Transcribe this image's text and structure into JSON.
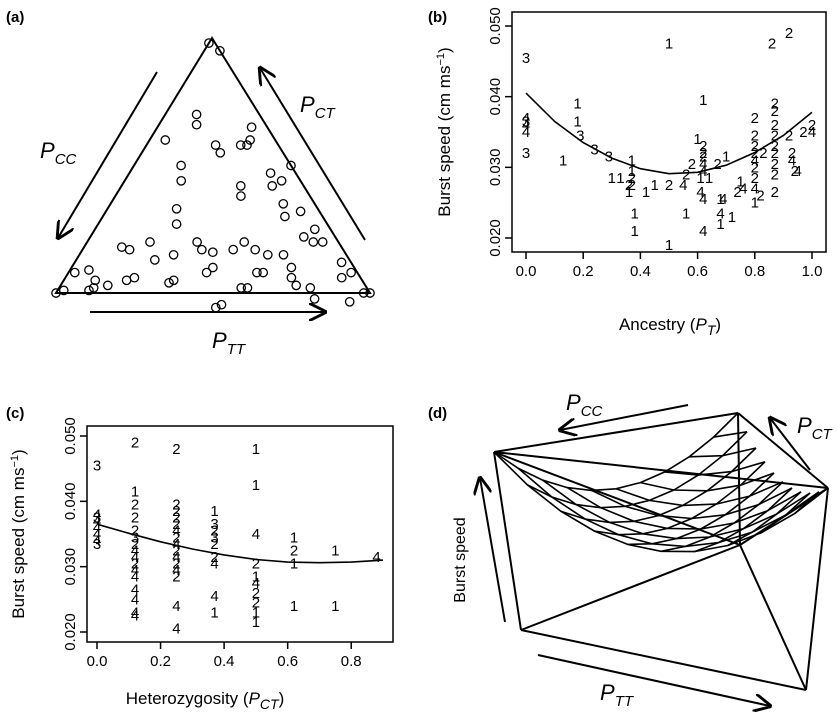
{
  "panels": {
    "a": {
      "label": "(a)",
      "edge_labels": {
        "cc_main": "P",
        "cc_sub": "CC",
        "ct_main": "P",
        "ct_sub": "CT",
        "tt_main": "P",
        "tt_sub": "TT"
      }
    },
    "b": {
      "label": "(b)",
      "xlabel_main": "Ancestry (",
      "xlabel_sym": "P",
      "xlabel_sub": "T",
      "xlabel_end": ")",
      "ylabel_main": "Burst speed (cm ms",
      "ylabel_sup": "−1",
      "ylabel_end": ")",
      "xticks": [
        "0.0",
        "0.2",
        "0.4",
        "0.6",
        "0.8",
        "1.0"
      ],
      "yticks": [
        "0.020",
        "0.030",
        "0.040",
        "0.050"
      ]
    },
    "c": {
      "label": "(c)",
      "xlabel_main": "Heterozygosity (",
      "xlabel_sym": "P",
      "xlabel_sub": "CT",
      "xlabel_end": ")",
      "ylabel_main": "Burst speed (cm ms",
      "ylabel_sup": "−1",
      "ylabel_end": ")",
      "xticks": [
        "0.0",
        "0.2",
        "0.4",
        "0.6",
        "0.8"
      ],
      "yticks": [
        "0.020",
        "0.030",
        "0.040",
        "0.050"
      ]
    },
    "d": {
      "label": "(d)",
      "zlabel": "Burst speed",
      "edge_labels": {
        "cc_main": "P",
        "cc_sub": "CC",
        "ct_main": "P",
        "ct_sub": "CT",
        "tt_main": "P",
        "tt_sub": "TT"
      }
    }
  },
  "chart_data": [
    {
      "panel": "a",
      "type": "scatter",
      "description": "ternary",
      "points": [
        [
          1.0,
          0.0
        ],
        [
          0.98,
          0.02
        ],
        [
          0.05,
          0.0
        ],
        [
          0.0,
          0.02
        ],
        [
          0.5,
          0.0
        ],
        [
          0.02,
          0.97
        ],
        [
          0.0,
          1.0
        ],
        [
          0.88,
          0.06
        ],
        [
          0.93,
          0.1
        ],
        [
          0.75,
          0.22
        ],
        [
          0.8,
          0.18
        ],
        [
          0.82,
          0.2
        ],
        [
          0.85,
          0.03
        ],
        [
          0.9,
          0.02
        ],
        [
          0.75,
          0.05
        ],
        [
          0.62,
          0.3
        ],
        [
          0.6,
          0.32
        ],
        [
          0.45,
          0.45
        ],
        [
          0.44,
          0.48
        ],
        [
          0.35,
          0.6
        ],
        [
          0.34,
          0.62
        ],
        [
          0.22,
          0.72
        ],
        [
          0.2,
          0.75
        ],
        [
          0.11,
          0.87
        ],
        [
          0.1,
          0.89
        ],
        [
          0.02,
          0.9
        ],
        [
          0.06,
          0.85
        ],
        [
          0.15,
          0.82
        ],
        [
          0.1,
          0.85
        ],
        [
          0.15,
          0.68
        ],
        [
          0.12,
          0.7
        ],
        [
          0.2,
          0.6
        ],
        [
          0.25,
          0.62
        ],
        [
          0.3,
          0.55
        ],
        [
          0.35,
          0.45
        ],
        [
          0.38,
          0.45
        ],
        [
          0.42,
          0.42
        ],
        [
          0.48,
          0.35
        ],
        [
          0.5,
          0.3
        ],
        [
          0.55,
          0.28
        ],
        [
          0.6,
          0.25
        ],
        [
          0.55,
          0.1
        ],
        [
          0.58,
          0.12
        ],
        [
          0.62,
          0.06
        ],
        [
          0.68,
          0.1
        ],
        [
          0.7,
          0.05
        ],
        [
          0.72,
          0.08
        ],
        [
          0.3,
          0.12
        ],
        [
          0.32,
          0.1
        ],
        [
          0.38,
          0.2
        ],
        [
          0.4,
          0.22
        ],
        [
          0.45,
          0.08
        ],
        [
          0.5,
          0.06
        ],
        [
          0.48,
          0.1
        ],
        [
          0.3,
          0.05
        ],
        [
          0.32,
          0.08
        ],
        [
          0.22,
          0.2
        ],
        [
          0.25,
          0.2
        ],
        [
          0.15,
          0.35
        ],
        [
          0.18,
          0.38
        ],
        [
          0.1,
          0.2
        ],
        [
          0.12,
          0.22
        ],
        [
          0.05,
          0.35
        ],
        [
          0.22,
          0.45
        ],
        [
          0.25,
          0.48
        ],
        [
          0.58,
          0.4
        ],
        [
          0.6,
          0.38
        ],
        [
          0.5,
          0.55
        ],
        [
          0.52,
          0.52
        ],
        [
          0.7,
          0.2
        ],
        [
          0.72,
          0.22
        ],
        [
          0.65,
          0.2
        ]
      ]
    },
    {
      "panel": "b",
      "type": "scatter",
      "xlim": [
        0,
        1.0
      ],
      "ylim": [
        0.02,
        0.05
      ],
      "points": [
        [
          0.0,
          0.0455,
          "3"
        ],
        [
          0.0,
          0.037,
          "4"
        ],
        [
          0.0,
          0.0365,
          "3"
        ],
        [
          0.0,
          0.036,
          "4"
        ],
        [
          0.0,
          0.035,
          "4"
        ],
        [
          0.0,
          0.032,
          "3"
        ],
        [
          0.13,
          0.031,
          "1"
        ],
        [
          0.18,
          0.039,
          "1"
        ],
        [
          0.18,
          0.0365,
          "1"
        ],
        [
          0.19,
          0.0345,
          "3"
        ],
        [
          0.24,
          0.0325,
          "3"
        ],
        [
          0.29,
          0.0315,
          "3"
        ],
        [
          0.3,
          0.0285,
          "1"
        ],
        [
          0.33,
          0.0285,
          "1"
        ],
        [
          0.36,
          0.0275,
          "2"
        ],
        [
          0.36,
          0.0265,
          "1"
        ],
        [
          0.37,
          0.031,
          "1"
        ],
        [
          0.37,
          0.0295,
          "1"
        ],
        [
          0.37,
          0.0285,
          "2"
        ],
        [
          0.37,
          0.0275,
          "2"
        ],
        [
          0.38,
          0.0235,
          "1"
        ],
        [
          0.38,
          0.021,
          "1"
        ],
        [
          0.42,
          0.0265,
          "1"
        ],
        [
          0.45,
          0.0275,
          "1"
        ],
        [
          0.5,
          0.0275,
          "2"
        ],
        [
          0.5,
          0.019,
          "1"
        ],
        [
          0.5,
          0.0475,
          "1"
        ],
        [
          0.55,
          0.0275,
          "4"
        ],
        [
          0.56,
          0.029,
          "2"
        ],
        [
          0.56,
          0.0235,
          "1"
        ],
        [
          0.58,
          0.0305,
          "2"
        ],
        [
          0.6,
          0.034,
          "1"
        ],
        [
          0.61,
          0.0285,
          "1"
        ],
        [
          0.61,
          0.0265,
          "4"
        ],
        [
          0.62,
          0.033,
          "2"
        ],
        [
          0.62,
          0.032,
          "2"
        ],
        [
          0.62,
          0.0305,
          "4"
        ],
        [
          0.62,
          0.0295,
          "4"
        ],
        [
          0.62,
          0.0255,
          "4"
        ],
        [
          0.62,
          0.021,
          "4"
        ],
        [
          0.62,
          0.0395,
          "1"
        ],
        [
          0.62,
          0.0315,
          "2"
        ],
        [
          0.64,
          0.0285,
          "1"
        ],
        [
          0.67,
          0.0305,
          "2"
        ],
        [
          0.68,
          0.0255,
          "1"
        ],
        [
          0.68,
          0.0235,
          "4"
        ],
        [
          0.68,
          0.022,
          "1"
        ],
        [
          0.69,
          0.0255,
          "4"
        ],
        [
          0.7,
          0.0315,
          "1"
        ],
        [
          0.72,
          0.023,
          "1"
        ],
        [
          0.74,
          0.0265,
          "2"
        ],
        [
          0.75,
          0.028,
          "1"
        ],
        [
          0.76,
          0.027,
          "4"
        ],
        [
          0.8,
          0.037,
          "2"
        ],
        [
          0.8,
          0.0345,
          "2"
        ],
        [
          0.8,
          0.033,
          "2"
        ],
        [
          0.8,
          0.032,
          "2"
        ],
        [
          0.8,
          0.031,
          "4"
        ],
        [
          0.8,
          0.03,
          "2"
        ],
        [
          0.8,
          0.0285,
          "2"
        ],
        [
          0.8,
          0.027,
          "4"
        ],
        [
          0.8,
          0.025,
          "1"
        ],
        [
          0.82,
          0.026,
          "2"
        ],
        [
          0.83,
          0.032,
          "2"
        ],
        [
          0.86,
          0.0475,
          "2"
        ],
        [
          0.87,
          0.039,
          "2"
        ],
        [
          0.87,
          0.038,
          "2"
        ],
        [
          0.87,
          0.036,
          "2"
        ],
        [
          0.87,
          0.0345,
          "2"
        ],
        [
          0.87,
          0.033,
          "2"
        ],
        [
          0.87,
          0.032,
          "2"
        ],
        [
          0.87,
          0.0305,
          "2"
        ],
        [
          0.87,
          0.029,
          "2"
        ],
        [
          0.87,
          0.0265,
          "2"
        ],
        [
          0.92,
          0.049,
          "2"
        ],
        [
          0.92,
          0.0345,
          "2"
        ],
        [
          0.93,
          0.032,
          "2"
        ],
        [
          0.93,
          0.031,
          "4"
        ],
        [
          0.94,
          0.0295,
          "2"
        ],
        [
          0.95,
          0.0295,
          "4"
        ],
        [
          0.97,
          0.035,
          "2"
        ],
        [
          1.0,
          0.036,
          "2"
        ],
        [
          1.0,
          0.035,
          "4"
        ]
      ],
      "curve": {
        "x": [
          0.0,
          0.1,
          0.2,
          0.3,
          0.4,
          0.5,
          0.6,
          0.7,
          0.8,
          0.9,
          1.0
        ],
        "y": [
          0.0405,
          0.0365,
          0.0335,
          0.0313,
          0.0298,
          0.0291,
          0.0293,
          0.0303,
          0.0321,
          0.0345,
          0.0378
        ]
      }
    },
    {
      "panel": "c",
      "type": "scatter",
      "xlim": [
        0,
        0.9
      ],
      "ylim": [
        0.02,
        0.05
      ],
      "points": [
        [
          0.0,
          0.0455,
          "3"
        ],
        [
          0.0,
          0.038,
          "4"
        ],
        [
          0.0,
          0.0375,
          "3"
        ],
        [
          0.0,
          0.037,
          "4"
        ],
        [
          0.0,
          0.036,
          "4"
        ],
        [
          0.0,
          0.035,
          "4"
        ],
        [
          0.0,
          0.034,
          "4"
        ],
        [
          0.0,
          0.0335,
          "3"
        ],
        [
          0.12,
          0.049,
          "2"
        ],
        [
          0.12,
          0.0415,
          "1"
        ],
        [
          0.12,
          0.0395,
          "2"
        ],
        [
          0.12,
          0.0375,
          "2"
        ],
        [
          0.12,
          0.0355,
          "2"
        ],
        [
          0.12,
          0.0345,
          "3"
        ],
        [
          0.12,
          0.0335,
          "2"
        ],
        [
          0.12,
          0.0325,
          "4"
        ],
        [
          0.12,
          0.0315,
          "4"
        ],
        [
          0.12,
          0.0305,
          "2"
        ],
        [
          0.12,
          0.0295,
          "4"
        ],
        [
          0.12,
          0.0285,
          "4"
        ],
        [
          0.12,
          0.0265,
          "4"
        ],
        [
          0.12,
          0.025,
          "4"
        ],
        [
          0.12,
          0.023,
          "4"
        ],
        [
          0.12,
          0.0225,
          "4"
        ],
        [
          0.25,
          0.048,
          "2"
        ],
        [
          0.25,
          0.0395,
          "2"
        ],
        [
          0.25,
          0.0385,
          "2"
        ],
        [
          0.25,
          0.0375,
          "2"
        ],
        [
          0.25,
          0.0365,
          "2"
        ],
        [
          0.25,
          0.0355,
          "4"
        ],
        [
          0.25,
          0.0345,
          "2"
        ],
        [
          0.25,
          0.0335,
          "4"
        ],
        [
          0.25,
          0.0325,
          "2"
        ],
        [
          0.25,
          0.0315,
          "4"
        ],
        [
          0.25,
          0.0305,
          "2"
        ],
        [
          0.25,
          0.0295,
          "4"
        ],
        [
          0.25,
          0.0285,
          "2"
        ],
        [
          0.25,
          0.024,
          "4"
        ],
        [
          0.25,
          0.0205,
          "4"
        ],
        [
          0.37,
          0.0385,
          "1"
        ],
        [
          0.37,
          0.0365,
          "3"
        ],
        [
          0.37,
          0.0355,
          "2"
        ],
        [
          0.37,
          0.0345,
          "3"
        ],
        [
          0.37,
          0.0335,
          "2"
        ],
        [
          0.37,
          0.0315,
          "2"
        ],
        [
          0.37,
          0.0305,
          "4"
        ],
        [
          0.37,
          0.0255,
          "4"
        ],
        [
          0.37,
          0.023,
          "1"
        ],
        [
          0.5,
          0.048,
          "1"
        ],
        [
          0.5,
          0.0425,
          "1"
        ],
        [
          0.5,
          0.035,
          "4"
        ],
        [
          0.5,
          0.0305,
          "2"
        ],
        [
          0.5,
          0.0285,
          "1"
        ],
        [
          0.5,
          0.0275,
          "4"
        ],
        [
          0.5,
          0.026,
          "2"
        ],
        [
          0.5,
          0.0245,
          "2"
        ],
        [
          0.5,
          0.023,
          "1"
        ],
        [
          0.5,
          0.0215,
          "1"
        ],
        [
          0.62,
          0.0345,
          "1"
        ],
        [
          0.62,
          0.0325,
          "2"
        ],
        [
          0.62,
          0.0305,
          "1"
        ],
        [
          0.62,
          0.024,
          "1"
        ],
        [
          0.75,
          0.0325,
          "1"
        ],
        [
          0.75,
          0.024,
          "1"
        ],
        [
          0.88,
          0.0315,
          "4"
        ]
      ],
      "curve": {
        "x": [
          0.0,
          0.1,
          0.2,
          0.3,
          0.4,
          0.5,
          0.6,
          0.7,
          0.8,
          0.9
        ],
        "y": [
          0.0365,
          0.0351,
          0.0338,
          0.0327,
          0.0318,
          0.0311,
          0.0307,
          0.0306,
          0.0307,
          0.031
        ]
      }
    },
    {
      "panel": "d",
      "type": "surface",
      "description": "3D"
    }
  ]
}
